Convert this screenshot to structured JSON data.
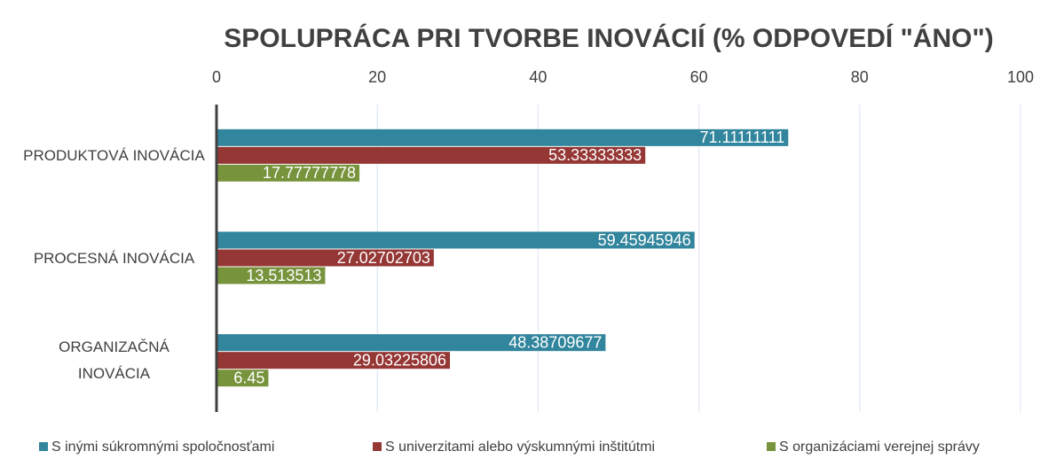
{
  "chart_data": {
    "type": "hbar",
    "title": "SPOLUPRÁCA PRI TVORBE INOVÁCIÍ (% ODPOVEDÍ \"ÁNO\")",
    "categories": [
      "PRODUKTOVÁ INOVÁCIA",
      "PROCESNÁ INOVÁCIA",
      "ORGANIZAČNÁ INOVÁCIA"
    ],
    "series": [
      {
        "name": "S inými súkromnými spoločnosťami",
        "color": "#31859c",
        "values": [
          71.11111111,
          59.45945946,
          48.38709677
        ]
      },
      {
        "name": "S univerzitami alebo výskumnými inštitútmi",
        "color": "#953735",
        "values": [
          53.33333333,
          27.02702703,
          29.03225806
        ]
      },
      {
        "name": "S organizáciami verejnej správy",
        "color": "#77933c",
        "values": [
          17.77777778,
          13.513513,
          6.45
        ]
      }
    ],
    "xlim": [
      0,
      100
    ],
    "xticks": [
      0,
      20,
      40,
      60,
      80,
      100
    ],
    "grid": true,
    "legend": "bottom"
  }
}
